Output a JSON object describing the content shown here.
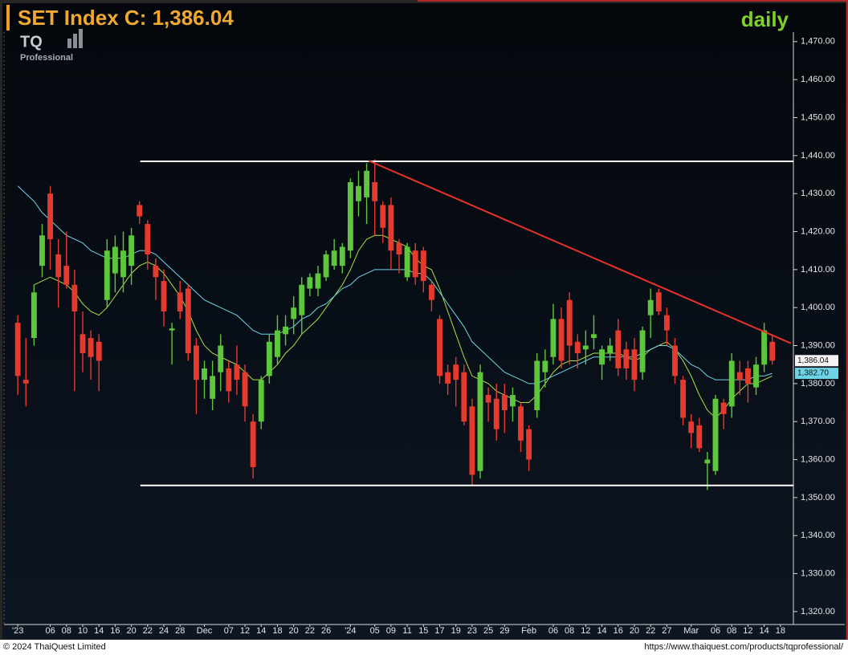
{
  "chart_data": {
    "type": "candlestick",
    "title": "SET Index C: 1,386.04",
    "period": "daily",
    "categories": [
      "'23",
      null,
      null,
      null,
      "06",
      null,
      "08",
      null,
      "10",
      null,
      "14",
      null,
      "16",
      null,
      "20",
      null,
      "22",
      null,
      "24",
      null,
      "28",
      null,
      null,
      "Dec",
      null,
      null,
      "07",
      null,
      "12",
      null,
      "14",
      null,
      "18",
      null,
      "20",
      null,
      "22",
      null,
      "26",
      null,
      null,
      "'24",
      null,
      null,
      "05",
      null,
      "09",
      null,
      "11",
      null,
      "15",
      null,
      "17",
      null,
      "19",
      null,
      "23",
      null,
      "25",
      null,
      "29",
      null,
      null,
      "Feb",
      null,
      null,
      "06",
      null,
      "08",
      null,
      "12",
      null,
      "14",
      null,
      "16",
      null,
      "20",
      null,
      "22",
      null,
      "27",
      null,
      null,
      "Mar",
      null,
      null,
      "06",
      null,
      "08",
      null,
      "12",
      null,
      "14",
      null,
      "18"
    ],
    "open": [
      1396,
      1381,
      1392,
      1411,
      1430,
      1414,
      1411,
      1406,
      1393,
      1392,
      1391,
      1402,
      1409,
      1408,
      1411,
      1427,
      1422,
      1411,
      1407,
      1394,
      1404,
      1405,
      1390,
      1381,
      1376,
      1383,
      1384,
      1385,
      1383,
      1370,
      1370,
      1382,
      1387,
      1393,
      1397,
      1398,
      1405,
      1405,
      1408,
      1411,
      1411,
      1415,
      1428,
      1429,
      1433,
      1427,
      1427,
      1417,
      1408,
      1415,
      1415,
      1406,
      1397,
      1383,
      1385,
      1383,
      1374,
      1357,
      1377,
      1376,
      1377,
      1374,
      1374,
      1368,
      1373,
      1383,
      1387,
      1397,
      1402,
      1391,
      1389,
      1392,
      1385,
      1388,
      1394,
      1389,
      1389,
      1383,
      1398,
      1404,
      1398,
      1390,
      1381,
      1370,
      1369,
      1359,
      1357,
      1375,
      1374,
      1383,
      1384,
      1379,
      1385,
      1391,
      null
    ],
    "high": [
      1398,
      1392,
      1406,
      1422,
      1432,
      1418,
      1420,
      1410,
      1399,
      1394,
      1393,
      1418,
      1419,
      1420,
      1421,
      1428,
      1423,
      1413,
      1410,
      1396,
      1407,
      1406,
      1392,
      1386,
      1386,
      1393,
      1386,
      1390,
      1385,
      1372,
      1382,
      1393,
      1398,
      1398,
      1403,
      1408,
      1409,
      1411,
      1415,
      1418,
      1417,
      1434,
      1436,
      1438,
      1439,
      1428,
      1429,
      1418,
      1417,
      1417,
      1416,
      1407,
      1398,
      1385,
      1387,
      1385,
      1376,
      1385,
      1379,
      1380,
      1380,
      1379,
      1375,
      1369,
      1388,
      1389,
      1401,
      1400,
      1404,
      1393,
      1394,
      1398,
      1390,
      1392,
      1397,
      1391,
      1392,
      1395,
      1405,
      1405,
      1400,
      1392,
      1382,
      1372,
      1371,
      1362,
      1377,
      1376,
      1388,
      1386,
      1386,
      1387,
      1396,
      1393,
      null
    ],
    "low": [
      1377,
      1374,
      1390,
      1408,
      1410,
      1400,
      1405,
      1378,
      1383,
      1381,
      1378,
      1400,
      1404,
      1404,
      1406,
      1422,
      1410,
      1402,
      1395,
      1385,
      1397,
      1386,
      1372,
      1376,
      1373,
      1378,
      1375,
      1377,
      1370,
      1355,
      1368,
      1380,
      1385,
      1390,
      1393,
      1393,
      1403,
      1403,
      1407,
      1410,
      1409,
      1413,
      1424,
      1422,
      1419,
      1417,
      1410,
      1409,
      1407,
      1406,
      1404,
      1399,
      1380,
      1377,
      1374,
      1369,
      1353,
      1355,
      1370,
      1365,
      1367,
      1370,
      1362,
      1357,
      1371,
      1379,
      1385,
      1384,
      1385,
      1384,
      1385,
      1389,
      1381,
      1386,
      1382,
      1381,
      1378,
      1381,
      1392,
      1398,
      1390,
      1380,
      1369,
      1363,
      1362,
      1352,
      1356,
      1368,
      1371,
      1377,
      1375,
      1377,
      1383,
      1385,
      null
    ],
    "close": [
      1382,
      1380,
      1404,
      1419,
      1418,
      1408,
      1406,
      1399,
      1388,
      1387,
      1386,
      1415,
      1416,
      1415,
      1419,
      1424,
      1414,
      1408,
      1399,
      1394.5,
      1399,
      1388,
      1381,
      1384,
      1382,
      1390,
      1378,
      1381,
      1374,
      1358,
      1381,
      1391,
      1394,
      1395,
      1400,
      1406,
      1408,
      1409,
      1414,
      1415,
      1416,
      1433,
      1432,
      1436,
      1428,
      1421,
      1415,
      1414,
      1416,
      1408,
      1407,
      1402,
      1382,
      1380,
      1381,
      1370,
      1356,
      1383,
      1375,
      1368,
      1373,
      1377,
      1365,
      1360,
      1386,
      1386,
      1397,
      1386,
      1390,
      1388,
      1390,
      1393,
      1389,
      1390,
      1384,
      1384,
      1381,
      1394,
      1402,
      1399,
      1394,
      1382,
      1371,
      1367,
      1363,
      1360,
      1376,
      1372,
      1386,
      1381,
      1380,
      1385,
      1394,
      1386.04,
      null
    ],
    "last_label": "1,386.04",
    "up_color": "#5ec63c",
    "down_color": "#e53a2e",
    "lines": [
      {
        "color": "#a8e04a",
        "values": [
          null,
          null,
          1406,
          1407,
          1408,
          1407,
          1406,
          1404,
          1401,
          1399,
          1398,
          1400,
          1403,
          1406,
          1409,
          1411,
          1412,
          1411,
          1409,
          1406,
          1403,
          1399,
          1394,
          1390,
          1388,
          1387,
          1386,
          1385,
          1383,
          1381,
          1381,
          1383,
          1385,
          1388,
          1390,
          1393,
          1395,
          1397,
          1400,
          1403,
          1406,
          1410,
          1415,
          1418,
          1419,
          1419,
          1418,
          1417,
          1416,
          1413,
          1411,
          1410,
          1405,
          1399,
          1393,
          1387,
          1382,
          1381,
          1380,
          1378,
          1377,
          1376,
          1375,
          1375,
          1377,
          1380,
          1383,
          1385,
          1386,
          1386,
          1387,
          1388,
          1388,
          1388,
          1388,
          1387,
          1386,
          1387,
          1389,
          1390,
          1391,
          1389,
          1386,
          1382,
          1377,
          1373,
          1371,
          1373,
          1376,
          1378,
          1380,
          1380,
          1381,
          1382,
          null
        ]
      },
      {
        "color": "#6fd3e6",
        "last_label": "1,382.70",
        "values": [
          1432,
          1430,
          1428,
          1425,
          1423,
          1421,
          1419,
          1418,
          1417,
          1415,
          1414,
          1413,
          1413,
          1413,
          1414,
          1415,
          1415,
          1414,
          1412,
          1410,
          1408,
          1406,
          1404,
          1402,
          1401,
          1400,
          1399,
          1398,
          1396,
          1394,
          1393,
          1393,
          1393,
          1394,
          1395,
          1397,
          1398,
          1400,
          1401,
          1403,
          1405,
          1406,
          1408,
          1409,
          1410,
          1410,
          1410,
          1410,
          1410,
          1409,
          1409,
          1407,
          1404,
          1401,
          1398,
          1395,
          1391,
          1389,
          1387,
          1385,
          1383,
          1382,
          1381,
          1380,
          1380,
          1381,
          1382,
          1383,
          1384,
          1385,
          1386,
          1387,
          1387,
          1387,
          1387,
          1387,
          1387,
          1388,
          1389,
          1390,
          1390,
          1389,
          1387,
          1385,
          1384,
          1382,
          1381,
          1381,
          1381,
          1381,
          1381,
          1382,
          1382,
          1382.7,
          null
        ]
      }
    ],
    "annotations": [
      {
        "color": "#ffffff",
        "x": [
          15.1,
          95.6
        ],
        "y": [
          1438.5,
          1438.5
        ]
      },
      {
        "color": "#ffffff",
        "x": [
          15.1,
          95.6
        ],
        "y": [
          1353.2,
          1353.2
        ]
      },
      {
        "color": "#e8322a",
        "x": [
          43.2,
          95.3
        ],
        "y": [
          1438.7,
          1390.6
        ]
      }
    ],
    "xlim": [
      -1.7,
      95.6
    ],
    "ylim": [
      1316.6,
      1472.5
    ],
    "yticks": [
      {
        "value": 1320,
        "label": "1,320.00"
      },
      {
        "value": 1330,
        "label": "1,330.00"
      },
      {
        "value": 1340,
        "label": "1,340.00"
      },
      {
        "value": 1350,
        "label": "1,350.00"
      },
      {
        "value": 1360,
        "label": "1,360.00"
      },
      {
        "value": 1370,
        "label": "1,370.00"
      },
      {
        "value": 1380,
        "label": "1,380.00"
      },
      {
        "value": 1390,
        "label": "1,390.00"
      },
      {
        "value": 1400,
        "label": "1,400.00"
      },
      {
        "value": 1410,
        "label": "1,410.00"
      },
      {
        "value": 1420,
        "label": "1,420.00"
      },
      {
        "value": 1430,
        "label": "1,430.00"
      },
      {
        "value": 1440,
        "label": "1,440.00"
      },
      {
        "value": 1450,
        "label": "1,450.00"
      },
      {
        "value": 1460,
        "label": "1,460.00"
      },
      {
        "value": 1470,
        "label": "1,470.00"
      }
    ]
  },
  "logo": {
    "text": "TQ",
    "subtext": "Professional"
  },
  "footer": {
    "copyright": "© 2024 ThaiQuest Limited",
    "url": "https://www.thaiquest.com/products/tqprofessional/"
  }
}
